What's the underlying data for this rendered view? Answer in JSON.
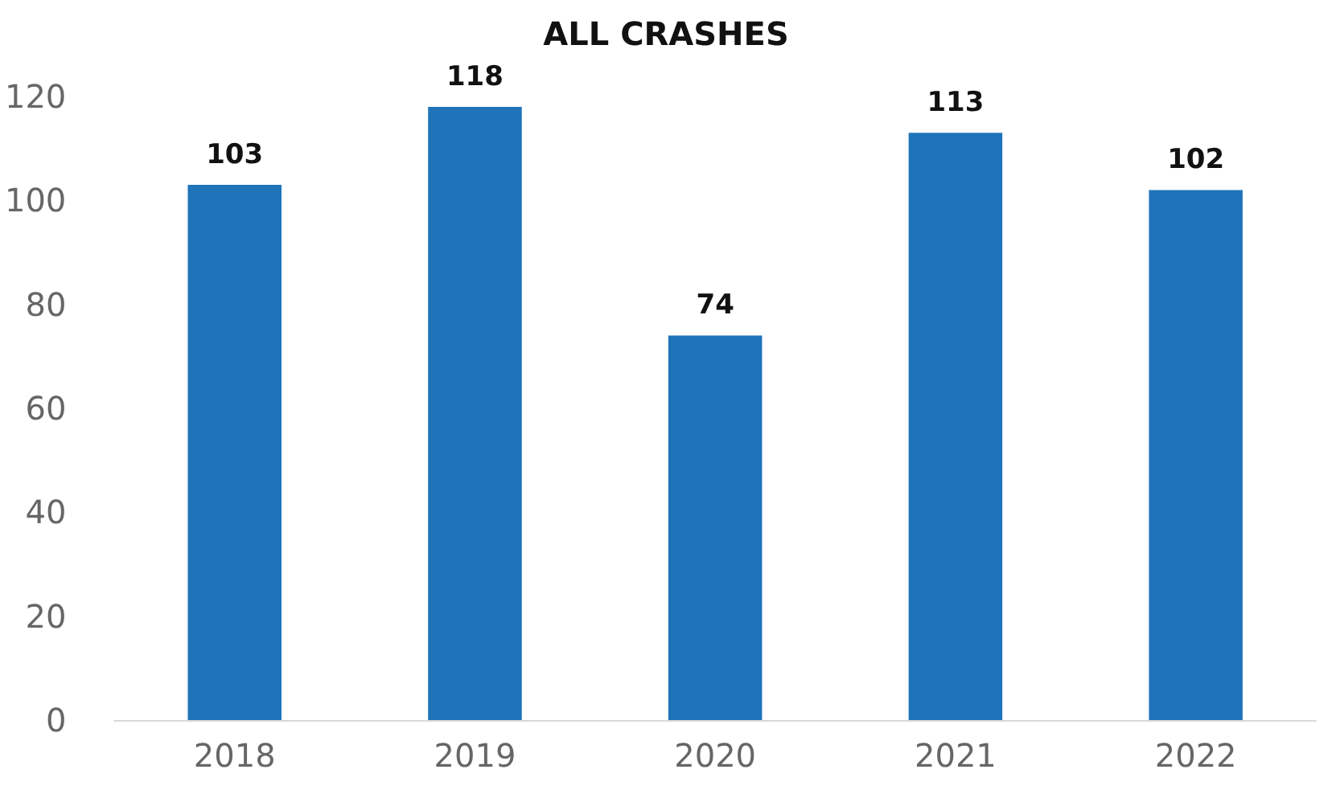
{
  "chart_data": {
    "type": "bar",
    "title": "ALL CRASHES",
    "categories": [
      "2018",
      "2019",
      "2020",
      "2021",
      "2022"
    ],
    "values": [
      103,
      118,
      74,
      113,
      102
    ],
    "color": "#1f74b9",
    "ylim": [
      0,
      120
    ],
    "yticks": [
      0,
      20,
      40,
      60,
      80,
      100,
      120
    ],
    "data_labels": true
  }
}
